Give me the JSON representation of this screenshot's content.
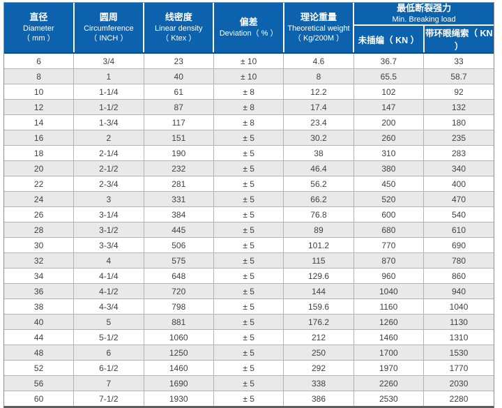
{
  "colors": {
    "header_bg": "#0d62ad",
    "header_text": "#ffffff",
    "header_bottom_edge": "#0b4c8c",
    "row_alt_bg": "#e9e9e9",
    "body_text": "#404040",
    "grid_line": "#b3b3b3",
    "outer_border": "#8e8e8e",
    "bottom_edge": "#5c5c5c"
  },
  "table": {
    "header": {
      "simple": [
        {
          "zh": "直径",
          "en": "Diameter",
          "unit": "（ mm ）"
        },
        {
          "zh": "圆周",
          "en": "Circumference",
          "unit": "（ INCH ）"
        },
        {
          "zh": "线密度",
          "en": "Linear density",
          "unit": "（ Ktex ）"
        },
        {
          "zh": "偏差",
          "en": "Deviation（ % ）",
          "unit": ""
        },
        {
          "zh": "理论重量",
          "en": "Theoretical weight",
          "unit": "（ Kg/200M ）"
        }
      ],
      "group": {
        "zh": "最低断裂强力",
        "en": "Min. Breaking load",
        "sub": [
          "未插编（ KN ）",
          "带环眼绳索（ KN ）"
        ]
      }
    },
    "rows": [
      [
        "6",
        "3/4",
        "23",
        "± 10",
        "4.6",
        "36.7",
        "33"
      ],
      [
        "8",
        "1",
        "40",
        "± 10",
        "8",
        "65.5",
        "58.7"
      ],
      [
        "10",
        "1-1/4",
        "61",
        "± 8",
        "12.2",
        "102",
        "92"
      ],
      [
        "12",
        "1-1/2",
        "87",
        "± 8",
        "17.4",
        "147",
        "132"
      ],
      [
        "14",
        "1-3/4",
        "117",
        "± 8",
        "23.4",
        "200",
        "180"
      ],
      [
        "16",
        "2",
        "151",
        "± 5",
        "30.2",
        "260",
        "235"
      ],
      [
        "18",
        "2-1/4",
        "190",
        "± 5",
        "38",
        "310",
        "283"
      ],
      [
        "20",
        "2-1/2",
        "232",
        "± 5",
        "46.4",
        "380",
        "340"
      ],
      [
        "22",
        "2-3/4",
        "281",
        "± 5",
        "56.2",
        "450",
        "400"
      ],
      [
        "24",
        "3",
        "331",
        "± 5",
        "66.2",
        "520",
        "470"
      ],
      [
        "26",
        "3-1/4",
        "384",
        "± 5",
        "76.8",
        "600",
        "540"
      ],
      [
        "28",
        "3-1/2",
        "445",
        "± 5",
        "89",
        "680",
        "610"
      ],
      [
        "30",
        "3-3/4",
        "506",
        "± 5",
        "101.2",
        "770",
        "690"
      ],
      [
        "32",
        "4",
        "575",
        "± 5",
        "115",
        "870",
        "780"
      ],
      [
        "34",
        "4-1/4",
        "648",
        "± 5",
        "129.6",
        "960",
        "860"
      ],
      [
        "36",
        "4-1/2",
        "720",
        "± 5",
        "144",
        "1040",
        "940"
      ],
      [
        "38",
        "4-3/4",
        "798",
        "± 5",
        "159.6",
        "1160",
        "1040"
      ],
      [
        "40",
        "5",
        "881",
        "± 5",
        "176.2",
        "1260",
        "1130"
      ],
      [
        "44",
        "5-1/2",
        "1060",
        "± 5",
        "212",
        "1460",
        "1310"
      ],
      [
        "48",
        "6",
        "1250",
        "± 5",
        "250",
        "1700",
        "1530"
      ],
      [
        "52",
        "6-1/2",
        "1460",
        "± 5",
        "292",
        "1970",
        "1770"
      ],
      [
        "56",
        "7",
        "1690",
        "± 5",
        "338",
        "2260",
        "2030"
      ],
      [
        "60",
        "7-1/2",
        "1930",
        "± 5",
        "386",
        "2530",
        "2280"
      ]
    ]
  }
}
